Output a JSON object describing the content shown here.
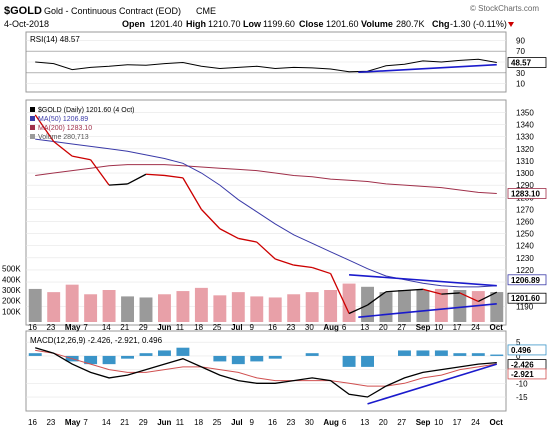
{
  "header": {
    "symbol": "$GOLD",
    "name": "Gold - Continuous Contract (EOD)",
    "exchange": "CME",
    "date": "4-Oct-2018",
    "open_label": "Open",
    "open": "1201.40",
    "high_label": "High",
    "high": "1210.70",
    "low_label": "Low",
    "low": "1199.60",
    "close_label": "Close",
    "close": "1201.60",
    "volume_label": "Volume",
    "volume": "280.7K",
    "chg_label": "Chg",
    "chg": "-1.30 (-0.11%)",
    "watermark": "© StockCharts.com"
  },
  "colors": {
    "price": "#000000",
    "price_down": "#cc0000",
    "ma50": "#3a3aa8",
    "ma200": "#a0304a",
    "volume_up": "#9a9a9a",
    "volume_down": "#e8a0a8",
    "trendline": "#1a1acc",
    "histogram": "#3a94c8",
    "signal": "#d05050",
    "macd": "#000000",
    "tag_rsi": "#ffffff",
    "tag_ma200": "#ffffff"
  },
  "chart_data": [
    {
      "type": "line",
      "title": "RSI(14) 48.57",
      "ylim": [
        0,
        100
      ],
      "yticks": [
        "90",
        "70",
        "50",
        "30",
        "10"
      ],
      "reference_lines": [
        30,
        70
      ],
      "last_value_tag": "48.57",
      "x": [
        "Apr 16",
        "Apr 23",
        "Apr 30",
        "May 7",
        "May 14",
        "May 21",
        "May 29",
        "Jun 4",
        "Jun 11",
        "Jun 18",
        "Jun 25",
        "Jul 2",
        "Jul 9",
        "Jul 16",
        "Jul 23",
        "Jul 30",
        "Aug 6",
        "Aug 13",
        "Aug 20",
        "Aug 27",
        "Sep 4",
        "Sep 10",
        "Sep 17",
        "Sep 24",
        "Oct 1",
        "Oct 4"
      ],
      "series": [
        {
          "values": [
            50,
            47,
            36,
            40,
            42,
            45,
            44,
            47,
            49,
            42,
            38,
            40,
            42,
            38,
            40,
            39,
            37,
            32,
            33,
            43,
            46,
            52,
            50,
            53,
            55,
            49
          ]
        }
      ],
      "annotations": [
        {
          "type": "trendline",
          "from": [
            "Aug 16",
            31
          ],
          "to": [
            "Oct 4",
            45
          ]
        }
      ]
    },
    {
      "type": "line",
      "title": "$GOLD (Daily) 1201.60 (4 Oct)",
      "ylim": [
        1177,
        1357
      ],
      "yticks": [
        "1350",
        "1340",
        "1330",
        "1320",
        "1310",
        "1300",
        "1290",
        "1280",
        "1270",
        "1260",
        "1250",
        "1240",
        "1230",
        "1220",
        "1210",
        "1190"
      ],
      "last_value_tags": [
        "1201.60",
        "1206.89",
        "1283.10"
      ],
      "legend": [
        "$GOLD (Daily) 1201.60 (4 Oct)",
        "MA(50) 1206.89",
        "MA(200) 1283.10",
        "Volume 280,713"
      ],
      "x": [
        "Apr 16",
        "Apr 23",
        "Apr 30",
        "May 7",
        "May 14",
        "May 21",
        "May 29",
        "Jun 4",
        "Jun 11",
        "Jun 18",
        "Jun 25",
        "Jul 2",
        "Jul 9",
        "Jul 16",
        "Jul 23",
        "Jul 30",
        "Aug 6",
        "Aug 13",
        "Aug 20",
        "Aug 27",
        "Sep 4",
        "Sep 10",
        "Sep 17",
        "Sep 24",
        "Oct 1",
        "Oct 4"
      ],
      "series": [
        {
          "name": "$GOLD (Daily)",
          "values": [
            1348,
            1326,
            1314,
            1311,
            1290,
            1291,
            1299,
            1298,
            1296,
            1270,
            1254,
            1246,
            1243,
            1229,
            1224,
            1222,
            1217,
            1184,
            1191,
            1202,
            1203,
            1204,
            1200,
            1201,
            1194,
            1201.6
          ]
        },
        {
          "name": "MA(50)",
          "values": [
            1328,
            1326,
            1324,
            1322,
            1320,
            1318,
            1315,
            1312,
            1308,
            1300,
            1290,
            1278,
            1268,
            1258,
            1249,
            1242,
            1235,
            1228,
            1221,
            1215,
            1212,
            1209,
            1207,
            1206,
            1206,
            1206.89
          ]
        },
        {
          "name": "MA(200)",
          "values": [
            1298,
            1300,
            1302,
            1304,
            1306,
            1307,
            1307,
            1307,
            1306,
            1305,
            1304,
            1303,
            1302,
            1300,
            1298,
            1297,
            1295,
            1294,
            1293,
            1291,
            1290,
            1289,
            1288,
            1286,
            1284,
            1283.1
          ]
        }
      ],
      "annotations": [
        {
          "type": "trendline",
          "from": [
            "Aug 13",
            1216
          ],
          "to": [
            "Oct 4",
            1207
          ]
        },
        {
          "type": "trendline",
          "from": [
            "Aug 16",
            1181
          ],
          "to": [
            "Oct 4",
            1192
          ]
        }
      ]
    },
    {
      "type": "bar",
      "title": "Volume 280,713",
      "ylim": [
        0,
        600000
      ],
      "yticks": [
        "500K",
        "400K",
        "300K",
        "200K",
        "100K"
      ],
      "x": [
        "Apr 16",
        "Apr 23",
        "Apr 30",
        "May 7",
        "May 14",
        "May 21",
        "May 29",
        "Jun 4",
        "Jun 11",
        "Jun 18",
        "Jun 25",
        "Jul 2",
        "Jul 9",
        "Jul 16",
        "Jul 23",
        "Jul 30",
        "Aug 6",
        "Aug 13",
        "Aug 20",
        "Aug 27",
        "Sep 4",
        "Sep 10",
        "Sep 17",
        "Sep 24",
        "Oct 1",
        "Oct 4"
      ],
      "values": [
        310000,
        280000,
        350000,
        260000,
        300000,
        240000,
        230000,
        260000,
        290000,
        320000,
        250000,
        280000,
        240000,
        230000,
        260000,
        280000,
        300000,
        360000,
        330000,
        280000,
        300000,
        300000,
        310000,
        300000,
        290000,
        280713
      ]
    },
    {
      "type": "line",
      "title": "MACD(12,26,9) -2.426, -2.921, 0.496",
      "ylim": [
        -19,
        8
      ],
      "yticks": [
        "5",
        "0",
        "-5",
        "-10",
        "-15"
      ],
      "last_value_tags": [
        "0.496",
        "-2.426",
        "-2.921"
      ],
      "x": [
        "Apr 16",
        "Apr 23",
        "Apr 30",
        "May 7",
        "May 14",
        "May 21",
        "May 29",
        "Jun 4",
        "Jun 11",
        "Jun 18",
        "Jun 25",
        "Jul 2",
        "Jul 9",
        "Jul 16",
        "Jul 23",
        "Jul 30",
        "Aug 6",
        "Aug 13",
        "Aug 20",
        "Aug 27",
        "Sep 4",
        "Sep 10",
        "Sep 17",
        "Sep 24",
        "Oct 1",
        "Oct 4"
      ],
      "series": [
        {
          "name": "MACD",
          "values": [
            3,
            1,
            -3,
            -6,
            -8,
            -7,
            -5,
            -3,
            -1,
            -4,
            -7,
            -9,
            -10,
            -10,
            -9,
            -8,
            -9,
            -14,
            -15,
            -11,
            -8,
            -6,
            -5,
            -4,
            -3,
            -2.426
          ]
        },
        {
          "name": "Signal",
          "values": [
            2,
            1,
            -1,
            -3,
            -5,
            -6,
            -6,
            -5,
            -4,
            -4,
            -5,
            -6,
            -8,
            -9,
            -9,
            -9,
            -9,
            -10,
            -11,
            -11,
            -10,
            -8,
            -7,
            -5,
            -4,
            -2.921
          ]
        },
        {
          "name": "Histogram",
          "values": [
            1,
            0,
            -2,
            -3,
            -3,
            -1,
            1,
            2,
            3,
            0,
            -2,
            -3,
            -2,
            -1,
            0,
            1,
            0,
            -4,
            -4,
            0,
            2,
            2,
            2,
            1,
            1,
            0.496
          ]
        }
      ],
      "annotations": [
        {
          "type": "trendline",
          "from": [
            "Aug 20",
            -17.5
          ],
          "to": [
            "Oct 4",
            -3
          ]
        }
      ]
    }
  ],
  "xaxis_labels": [
    "16",
    "23",
    "May",
    "7",
    "14",
    "21",
    "29",
    "Jun",
    "11",
    "18",
    "25",
    "Jul",
    "9",
    "16",
    "23",
    "30",
    "Aug",
    "6",
    "13",
    "20",
    "27",
    "Sep",
    "10",
    "17",
    "24",
    "Oct"
  ]
}
